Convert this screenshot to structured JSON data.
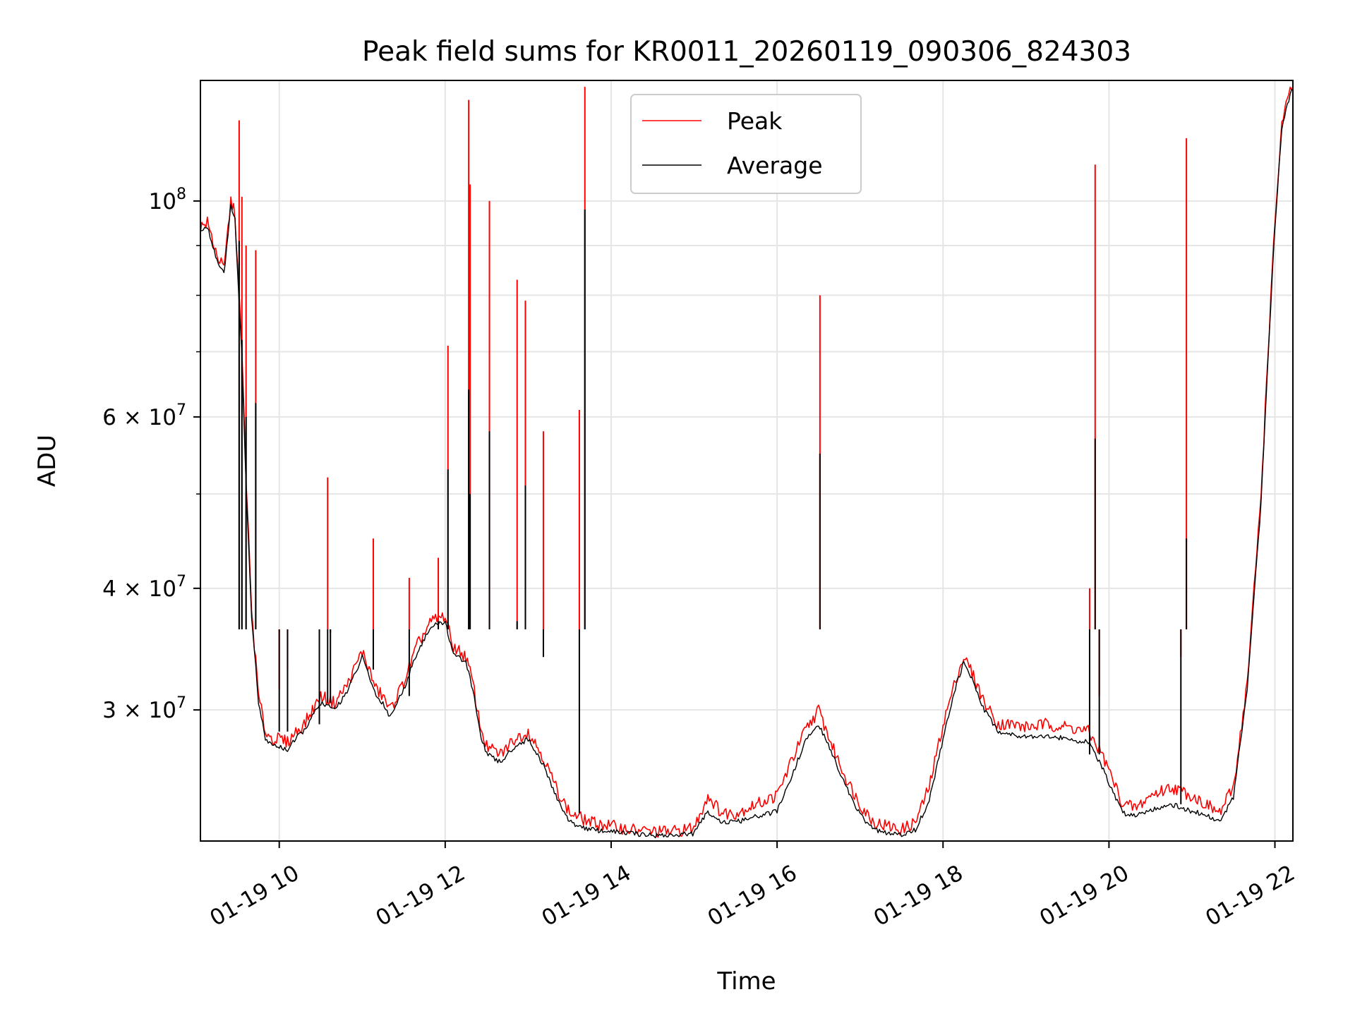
{
  "chart_data": {
    "type": "line",
    "title": "Peak field sums for KR0011_20260119_090306_824303",
    "xlabel": "Time",
    "ylabel": "ADU",
    "yscale": "log",
    "xlim": [
      "2026-01-19 09:03",
      "2026-01-19 22:13"
    ],
    "ylim": [
      22000000,
      133000000
    ],
    "grid": true,
    "legend": "upper center",
    "x_ticks": [
      {
        "value": "2026-01-19 10:00",
        "label": "01-19 10"
      },
      {
        "value": "2026-01-19 12:00",
        "label": "01-19 12"
      },
      {
        "value": "2026-01-19 14:00",
        "label": "01-19 14"
      },
      {
        "value": "2026-01-19 16:00",
        "label": "01-19 16"
      },
      {
        "value": "2026-01-19 18:00",
        "label": "01-19 18"
      },
      {
        "value": "2026-01-19 20:00",
        "label": "01-19 20"
      },
      {
        "value": "2026-01-19 22:00",
        "label": "01-19 22"
      }
    ],
    "y_ticks": [
      {
        "value": 100000000,
        "base": "10",
        "exp": "8"
      },
      {
        "value": 60000000,
        "base": "6 × 10",
        "exp": "7"
      },
      {
        "value": 40000000,
        "base": "4 × 10",
        "exp": "7"
      },
      {
        "value": 30000000,
        "base": "3 × 10",
        "exp": "7"
      }
    ],
    "y_minor_ticks": [
      50000000,
      70000000,
      80000000,
      90000000
    ],
    "series": [
      {
        "name": "Peak",
        "color": "#ff0000",
        "x": [
          "09:03",
          "09:08",
          "09:15",
          "09:20",
          "09:25",
          "09:28",
          "09:30",
          "09:33",
          "09:36",
          "09:40",
          "09:45",
          "09:50",
          "09:55",
          "10:00",
          "10:06",
          "10:12",
          "10:18",
          "10:30",
          "10:40",
          "10:50",
          "11:00",
          "11:05",
          "11:10",
          "11:15",
          "11:20",
          "11:30",
          "11:40",
          "11:50",
          "12:00",
          "12:05",
          "12:15",
          "12:20",
          "12:25",
          "12:30",
          "12:40",
          "12:50",
          "13:00",
          "13:10",
          "13:20",
          "13:30",
          "13:45",
          "14:00",
          "14:15",
          "14:30",
          "14:45",
          "15:00",
          "15:10",
          "15:20",
          "15:30",
          "15:45",
          "16:00",
          "16:10",
          "16:20",
          "16:30",
          "16:40",
          "16:50",
          "17:00",
          "17:10",
          "17:20",
          "17:30",
          "17:40",
          "17:50",
          "18:00",
          "18:10",
          "18:15",
          "18:20",
          "18:30",
          "18:40",
          "18:50",
          "19:00",
          "19:15",
          "19:30",
          "19:45",
          "19:55",
          "20:00",
          "20:10",
          "20:20",
          "20:30",
          "20:45",
          "21:00",
          "21:10",
          "21:20",
          "21:30",
          "21:40",
          "21:50",
          "21:55",
          "22:00",
          "22:05",
          "22:10",
          "22:13"
        ],
        "y": [
          94000000,
          95000000,
          88000000,
          85000000,
          100000000,
          97000000,
          85000000,
          70000000,
          52000000,
          38000000,
          31000000,
          28500000,
          28000000,
          28000000,
          27800000,
          28500000,
          29000000,
          31000000,
          30500000,
          32000000,
          34500000,
          33000000,
          31500000,
          31000000,
          30000000,
          32000000,
          35000000,
          37000000,
          37500000,
          35000000,
          34000000,
          32000000,
          29000000,
          27500000,
          27000000,
          28000000,
          28500000,
          27000000,
          25000000,
          23500000,
          23000000,
          22800000,
          22600000,
          22500000,
          22500000,
          22700000,
          24500000,
          23500000,
          23500000,
          24000000,
          24500000,
          26500000,
          28500000,
          30000000,
          27500000,
          25500000,
          24000000,
          23000000,
          22800000,
          22600000,
          23000000,
          25000000,
          29000000,
          32500000,
          34000000,
          33000000,
          30500000,
          29000000,
          29000000,
          28800000,
          29000000,
          28800000,
          28500000,
          27000000,
          26000000,
          24000000,
          23800000,
          24500000,
          25000000,
          24500000,
          24000000,
          23500000,
          25000000,
          32000000,
          50000000,
          70000000,
          95000000,
          120000000,
          128000000,
          132000000
        ]
      },
      {
        "name": "Average",
        "color": "#000000",
        "x": [
          "09:03",
          "09:08",
          "09:15",
          "09:20",
          "09:25",
          "09:28",
          "09:30",
          "09:33",
          "09:36",
          "09:40",
          "09:45",
          "09:50",
          "09:55",
          "10:00",
          "10:06",
          "10:12",
          "10:18",
          "10:30",
          "10:40",
          "10:50",
          "11:00",
          "11:05",
          "11:10",
          "11:15",
          "11:20",
          "11:30",
          "11:40",
          "11:50",
          "12:00",
          "12:05",
          "12:15",
          "12:20",
          "12:25",
          "12:30",
          "12:40",
          "12:50",
          "13:00",
          "13:10",
          "13:20",
          "13:30",
          "13:45",
          "14:00",
          "14:15",
          "14:30",
          "14:45",
          "15:00",
          "15:10",
          "15:20",
          "15:30",
          "15:45",
          "16:00",
          "16:10",
          "16:20",
          "16:30",
          "16:40",
          "16:50",
          "17:00",
          "17:10",
          "17:20",
          "17:30",
          "17:40",
          "17:50",
          "18:00",
          "18:10",
          "18:15",
          "18:20",
          "18:30",
          "18:40",
          "18:50",
          "19:00",
          "19:15",
          "19:30",
          "19:45",
          "19:55",
          "20:00",
          "20:10",
          "20:20",
          "20:30",
          "20:45",
          "21:00",
          "21:10",
          "21:20",
          "21:30",
          "21:40",
          "21:50",
          "21:55",
          "22:00",
          "22:05",
          "22:10",
          "22:13"
        ],
        "y": [
          93000000,
          94000000,
          87000000,
          84000000,
          99000000,
          96000000,
          84000000,
          69000000,
          51000000,
          37500000,
          30500000,
          28000000,
          27600000,
          27500000,
          27300000,
          28000000,
          28600000,
          30500000,
          30000000,
          31500000,
          34000000,
          32500000,
          31000000,
          30500000,
          29500000,
          31500000,
          34500000,
          36500000,
          37000000,
          34500000,
          33500000,
          31500000,
          28500000,
          27000000,
          26500000,
          27500000,
          28000000,
          26500000,
          24500000,
          23000000,
          22600000,
          22500000,
          22400000,
          22300000,
          22300000,
          22400000,
          23600000,
          23000000,
          23000000,
          23300000,
          23600000,
          25500000,
          27800000,
          29000000,
          27000000,
          25000000,
          23400000,
          22600000,
          22400000,
          22300000,
          22600000,
          24200000,
          28000000,
          32000000,
          33500000,
          32500000,
          30000000,
          28500000,
          28300000,
          28200000,
          28200000,
          28000000,
          27800000,
          26200000,
          25200000,
          23500000,
          23400000,
          23700000,
          24000000,
          23600000,
          23400000,
          23000000,
          24400000,
          31500000,
          49000000,
          69000000,
          94000000,
          119000000,
          127000000,
          131000000
        ]
      }
    ],
    "spikes": [
      {
        "x": "09:31",
        "peak": 121000000,
        "avg": 91000000
      },
      {
        "x": "09:33",
        "peak": 101000000,
        "avg": 72000000
      },
      {
        "x": "09:36",
        "peak": 90000000,
        "avg": 60000000
      },
      {
        "x": "09:43",
        "peak": 89000000,
        "avg": 62000000
      },
      {
        "x": "10:00",
        "peak": 31500000,
        "avg": 28500000
      },
      {
        "x": "10:06",
        "peak": 33000000,
        "avg": 28500000
      },
      {
        "x": "10:29",
        "peak": 32000000,
        "avg": 29000000
      },
      {
        "x": "10:35",
        "peak": 52000000,
        "avg": 30500000
      },
      {
        "x": "10:37",
        "peak": 36000000,
        "avg": 30500000
      },
      {
        "x": "11:08",
        "peak": 45000000,
        "avg": 33000000
      },
      {
        "x": "11:34",
        "peak": 41000000,
        "avg": 31000000
      },
      {
        "x": "11:55",
        "peak": 43000000,
        "avg": 37000000
      },
      {
        "x": "12:02",
        "peak": 71000000,
        "avg": 53000000
      },
      {
        "x": "12:17",
        "peak": 127000000,
        "avg": 64000000
      },
      {
        "x": "12:18",
        "peak": 104000000,
        "avg": 50000000
      },
      {
        "x": "12:32",
        "peak": 100000000,
        "avg": 58000000
      },
      {
        "x": "12:52",
        "peak": 83000000,
        "avg": 37000000
      },
      {
        "x": "12:58",
        "peak": 79000000,
        "avg": 51000000
      },
      {
        "x": "13:11",
        "peak": 58000000,
        "avg": 34000000
      },
      {
        "x": "13:37",
        "peak": 61000000,
        "avg": 23500000
      },
      {
        "x": "13:41",
        "peak": 131000000,
        "avg": 98000000
      },
      {
        "x": "16:31",
        "peak": 80000000,
        "avg": 55000000
      },
      {
        "x": "19:46",
        "peak": 40000000,
        "avg": 27000000
      },
      {
        "x": "19:50",
        "peak": 109000000,
        "avg": 57000000
      },
      {
        "x": "19:53",
        "peak": 31000000,
        "avg": 27000000
      },
      {
        "x": "20:52",
        "peak": 34000000,
        "avg": 24000000
      },
      {
        "x": "20:56",
        "peak": 116000000,
        "avg": 45000000
      }
    ]
  }
}
